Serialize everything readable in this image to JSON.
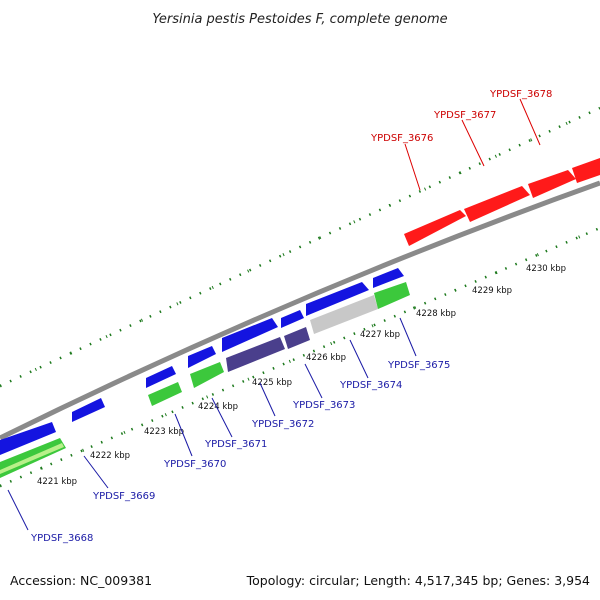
{
  "title": "Yersinia pestis Pestoides F, complete genome",
  "footer": {
    "accession": "Accession: NC_009381",
    "summary": "Topology: circular; Length: 4,517,345 bp; Genes: 3,954"
  },
  "colors": {
    "backbone": "#8a8a8a",
    "ticks": "#1e7a1e",
    "forward_gene": "#ff1a1a",
    "reverse_gene": "#1414e0",
    "rna_gene": "#3cc83c",
    "other_gene": "#4a3f8c",
    "pseudo_gene": "#c8c8c8",
    "label_forward": "#cc0000",
    "label_reverse": "#1a1aa6"
  },
  "scale_labels": [
    "4221 kbp",
    "4222 kbp",
    "4223 kbp",
    "4224 kbp",
    "4225 kbp",
    "4226 kbp",
    "4227 kbp",
    "4228 kbp",
    "4229 kbp",
    "4230 kbp"
  ],
  "gene_labels": {
    "forward": [
      "YPDSF_3676",
      "YPDSF_3677",
      "YPDSF_3678"
    ],
    "reverse": [
      "YPDSF_3668",
      "YPDSF_3669",
      "YPDSF_3670",
      "YPDSF_3671",
      "YPDSF_3672",
      "YPDSF_3673",
      "YPDSF_3674",
      "YPDSF_3675"
    ]
  }
}
